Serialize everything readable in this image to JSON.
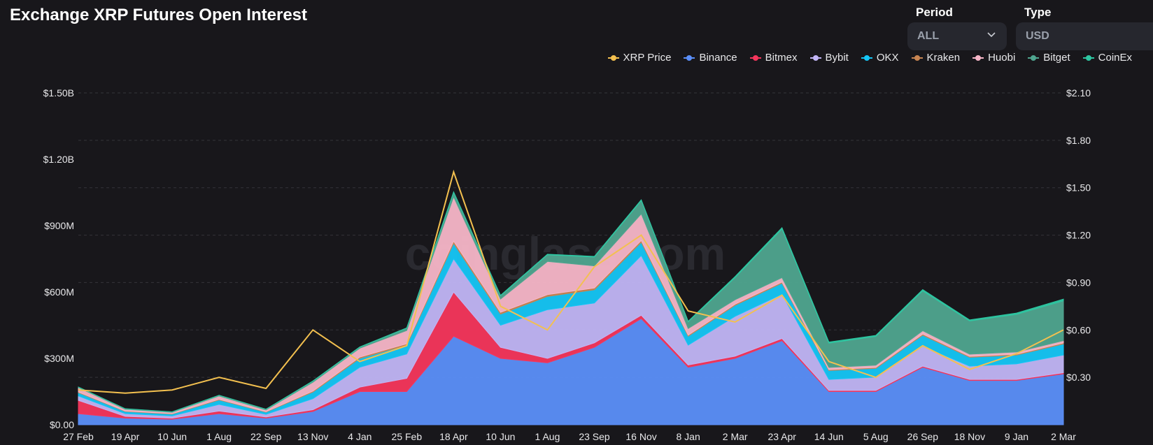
{
  "header": {
    "title": "Exchange XRP Futures Open Interest",
    "period_label": "Period",
    "period_value": "ALL",
    "type_label": "Type",
    "type_value": "USD",
    "watermark": "coinglass.com"
  },
  "chart_data": {
    "type": "area",
    "title": "Exchange XRP Futures Open Interest",
    "legend_position": "top-right",
    "grid": true,
    "yaxis_left": {
      "ylim": [
        0,
        1500000000
      ],
      "ticks": [
        "$0.00",
        "$300M",
        "$600M",
        "$900M",
        "$1.20B",
        "$1.50B"
      ],
      "tick_values": [
        0,
        300000000,
        600000000,
        900000000,
        1200000000,
        1500000000
      ]
    },
    "yaxis_right": {
      "ylim": [
        0,
        2.1
      ],
      "ticks": [
        "$0.30",
        "$0.60",
        "$0.90",
        "$1.20",
        "$1.50",
        "$1.80",
        "$2.10"
      ],
      "tick_values": [
        0.3,
        0.6,
        0.9,
        1.2,
        1.5,
        1.8,
        2.1
      ]
    },
    "x_ticks": [
      "27 Feb",
      "19 Apr",
      "10 Jun",
      "1 Aug",
      "22 Sep",
      "13 Nov",
      "4 Jan",
      "25 Feb",
      "18 Apr",
      "10 Jun",
      "1 Aug",
      "23 Sep",
      "16 Nov",
      "8 Jan",
      "2 Mar",
      "23 Apr",
      "14 Jun",
      "5 Aug",
      "26 Sep",
      "18 Nov",
      "9 Jan",
      "2 Mar"
    ],
    "x": [
      "27 Feb",
      "19 Apr",
      "10 Jun",
      "1 Aug",
      "22 Sep",
      "13 Nov",
      "4 Jan",
      "25 Feb",
      "18 Apr",
      "10 Jun",
      "1 Aug",
      "23 Sep",
      "16 Nov",
      "8 Jan",
      "2 Mar",
      "23 Apr",
      "14 Jun",
      "5 Aug",
      "26 Sep",
      "18 Nov",
      "9 Jan",
      "2 Mar"
    ],
    "series": [
      {
        "name": "Binance",
        "color": "#5b8ff9",
        "axis": "left",
        "values": [
          50000000,
          30000000,
          25000000,
          50000000,
          30000000,
          60000000,
          150000000,
          150000000,
          400000000,
          300000000,
          280000000,
          350000000,
          480000000,
          260000000,
          300000000,
          380000000,
          150000000,
          150000000,
          260000000,
          200000000,
          200000000,
          230000000
        ]
      },
      {
        "name": "Bitmex",
        "color": "#f5365c",
        "axis": "left",
        "values": [
          60000000,
          8000000,
          5000000,
          12000000,
          5000000,
          8000000,
          20000000,
          60000000,
          200000000,
          50000000,
          20000000,
          20000000,
          15000000,
          10000000,
          10000000,
          10000000,
          5000000,
          5000000,
          5000000,
          5000000,
          5000000,
          5000000
        ]
      },
      {
        "name": "Bybit",
        "color": "#c1b5f5",
        "axis": "left",
        "values": [
          20000000,
          12000000,
          10000000,
          30000000,
          12000000,
          50000000,
          90000000,
          110000000,
          150000000,
          100000000,
          220000000,
          180000000,
          270000000,
          90000000,
          180000000,
          200000000,
          50000000,
          60000000,
          90000000,
          60000000,
          70000000,
          80000000
        ]
      },
      {
        "name": "OKX",
        "color": "#15c6f5",
        "axis": "left",
        "values": [
          15000000,
          10000000,
          8000000,
          20000000,
          10000000,
          30000000,
          40000000,
          40000000,
          70000000,
          50000000,
          60000000,
          60000000,
          60000000,
          40000000,
          50000000,
          50000000,
          40000000,
          40000000,
          50000000,
          40000000,
          40000000,
          50000000
        ]
      },
      {
        "name": "Kraken",
        "color": "#c78451",
        "axis": "left",
        "values": [
          3000000,
          2000000,
          2000000,
          3000000,
          2000000,
          4000000,
          6000000,
          6000000,
          10000000,
          8000000,
          8000000,
          8000000,
          8000000,
          5000000,
          5000000,
          5000000,
          4000000,
          4000000,
          5000000,
          4000000,
          4000000,
          5000000
        ]
      },
      {
        "name": "Huobi",
        "color": "#f7b6c8",
        "axis": "left",
        "values": [
          20000000,
          8000000,
          6000000,
          15000000,
          8000000,
          40000000,
          40000000,
          60000000,
          200000000,
          60000000,
          150000000,
          100000000,
          120000000,
          30000000,
          20000000,
          20000000,
          10000000,
          10000000,
          15000000,
          10000000,
          10000000,
          10000000
        ]
      },
      {
        "name": "Bitget",
        "color": "#4fa58f",
        "axis": "left",
        "values": [
          2000000,
          2000000,
          2000000,
          3000000,
          3000000,
          5000000,
          5000000,
          10000000,
          20000000,
          15000000,
          30000000,
          40000000,
          60000000,
          30000000,
          100000000,
          220000000,
          110000000,
          130000000,
          180000000,
          150000000,
          170000000,
          180000000
        ]
      },
      {
        "name": "CoinEx",
        "color": "#2ec7a2",
        "axis": "left",
        "values": [
          500000,
          500000,
          500000,
          500000,
          500000,
          1000000,
          1000000,
          2000000,
          3000000,
          2000000,
          3000000,
          3000000,
          4000000,
          3000000,
          5000000,
          6000000,
          5000000,
          5000000,
          6000000,
          5000000,
          6000000,
          8000000
        ]
      },
      {
        "name": "XRP Price",
        "color": "#f3c04f",
        "axis": "right",
        "type": "line",
        "values": [
          0.22,
          0.2,
          0.22,
          0.3,
          0.23,
          0.6,
          0.4,
          0.5,
          1.6,
          0.75,
          0.6,
          1.0,
          1.2,
          0.72,
          0.65,
          0.82,
          0.4,
          0.3,
          0.5,
          0.35,
          0.45,
          0.6
        ]
      }
    ]
  }
}
